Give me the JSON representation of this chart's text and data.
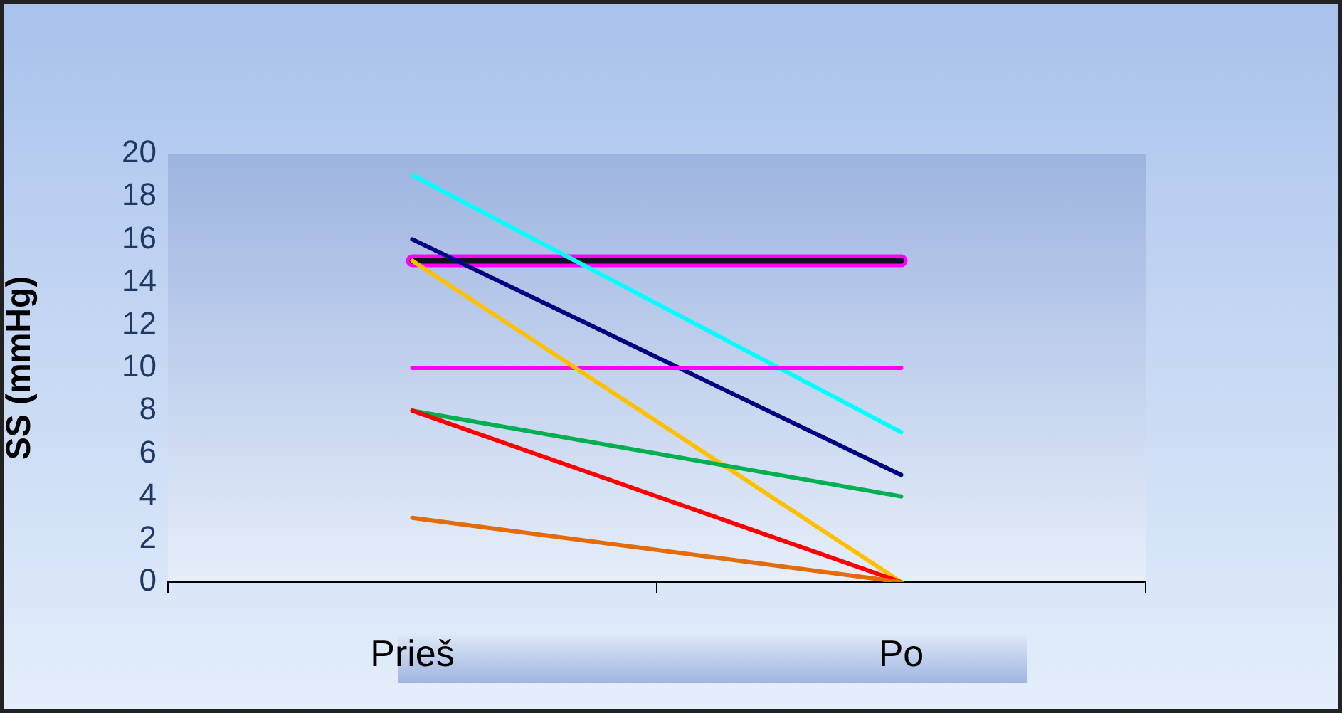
{
  "chart_data": {
    "type": "line",
    "ylabel": "SS (mmHg)",
    "categories": [
      "Prieš",
      "Po"
    ],
    "series": [
      {
        "color": "#ff00ff",
        "values": [
          15,
          15
        ]
      },
      {
        "color": "#10101e",
        "values": [
          15,
          15
        ]
      },
      {
        "color": "#00ffff",
        "values": [
          19,
          7
        ]
      },
      {
        "color": "#000080",
        "values": [
          16,
          5
        ]
      },
      {
        "color": "#ff00ff",
        "values": [
          10,
          10
        ]
      },
      {
        "color": "#ffc000",
        "values": [
          15,
          0
        ]
      },
      {
        "color": "#00b050",
        "values": [
          8,
          4
        ]
      },
      {
        "color": "#ff0000",
        "values": [
          8,
          0
        ]
      },
      {
        "color": "#e36c09",
        "values": [
          3,
          0
        ]
      }
    ],
    "ylim": [
      0,
      20
    ],
    "yticks": [
      0,
      2,
      4,
      6,
      8,
      10,
      12,
      14,
      16,
      18,
      20
    ],
    "grid": false,
    "legend": false,
    "marker": "none",
    "line_style": "solid"
  }
}
